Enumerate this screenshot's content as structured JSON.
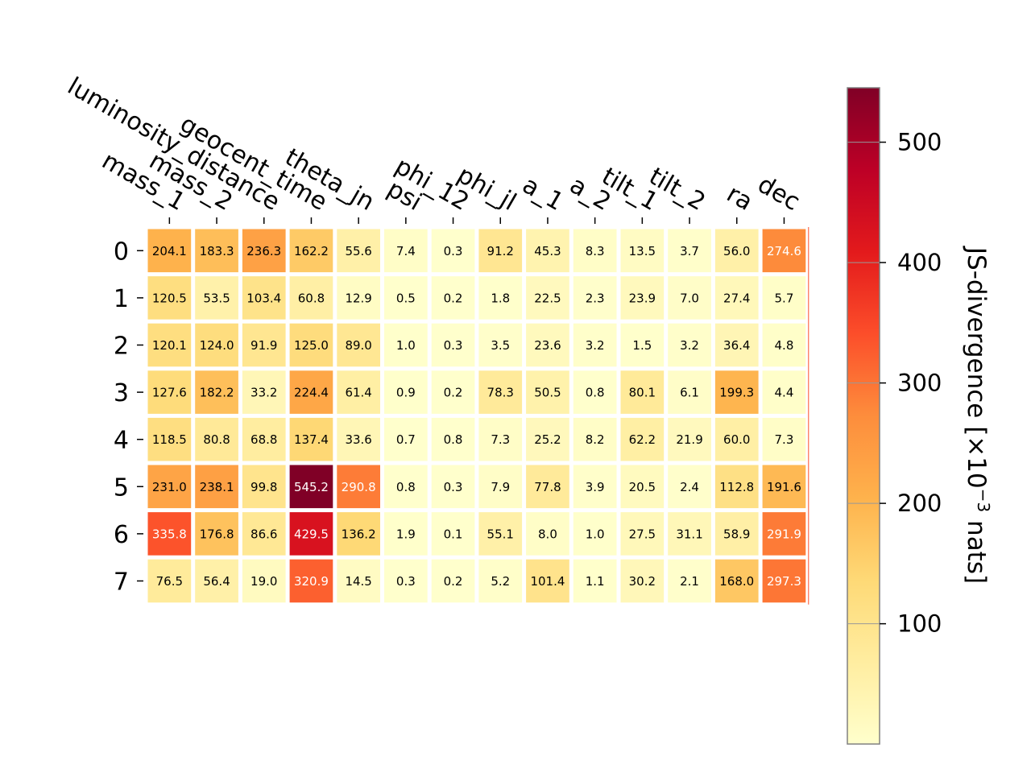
{
  "chart_data": {
    "type": "heatmap",
    "columns": [
      "mass_1",
      "mass_2",
      "luminosity_distance",
      "geocent_time",
      "theta_jn",
      "psi",
      "phi_12",
      "phi_jl",
      "a_1",
      "a_2",
      "tilt_1",
      "tilt_2",
      "ra",
      "dec"
    ],
    "rows": [
      "0",
      "1",
      "2",
      "3",
      "4",
      "5",
      "6",
      "7"
    ],
    "values": [
      [
        204.1,
        183.3,
        236.3,
        162.2,
        55.6,
        7.4,
        0.3,
        91.2,
        45.3,
        8.3,
        13.5,
        3.7,
        56.0,
        274.6
      ],
      [
        120.5,
        53.5,
        103.4,
        60.8,
        12.9,
        0.5,
        0.2,
        1.8,
        22.5,
        2.3,
        23.9,
        7.0,
        27.4,
        5.7
      ],
      [
        120.1,
        124.0,
        91.9,
        125.0,
        89.0,
        1.0,
        0.3,
        3.5,
        23.6,
        3.2,
        1.5,
        3.2,
        36.4,
        4.8
      ],
      [
        127.6,
        182.2,
        33.2,
        224.4,
        61.4,
        0.9,
        0.2,
        78.3,
        50.5,
        0.8,
        80.1,
        6.1,
        199.3,
        4.4
      ],
      [
        118.5,
        80.8,
        68.8,
        137.4,
        33.6,
        0.7,
        0.8,
        7.3,
        25.2,
        8.2,
        62.2,
        21.9,
        60.0,
        7.3
      ],
      [
        231.0,
        238.1,
        99.8,
        545.2,
        290.8,
        0.8,
        0.3,
        7.9,
        77.8,
        3.9,
        20.5,
        2.4,
        112.8,
        191.6
      ],
      [
        335.8,
        176.8,
        86.6,
        429.5,
        136.2,
        1.9,
        0.1,
        55.1,
        8.0,
        1.0,
        27.5,
        31.1,
        58.9,
        291.9
      ],
      [
        76.5,
        56.4,
        19.0,
        320.9,
        14.5,
        0.3,
        0.2,
        5.2,
        101.4,
        1.1,
        30.2,
        2.1,
        168.0,
        297.3
      ]
    ],
    "colormap": "YlOrRd",
    "colorbar": {
      "label": "JS-divergence [×10",
      "label_exponent": "−3",
      "label_suffix": " nats]",
      "ticks": [
        "100",
        "200",
        "300",
        "400",
        "500"
      ],
      "tick_values": [
        100,
        200,
        300,
        400,
        500
      ],
      "range": [
        0.1,
        545.2
      ]
    }
  }
}
